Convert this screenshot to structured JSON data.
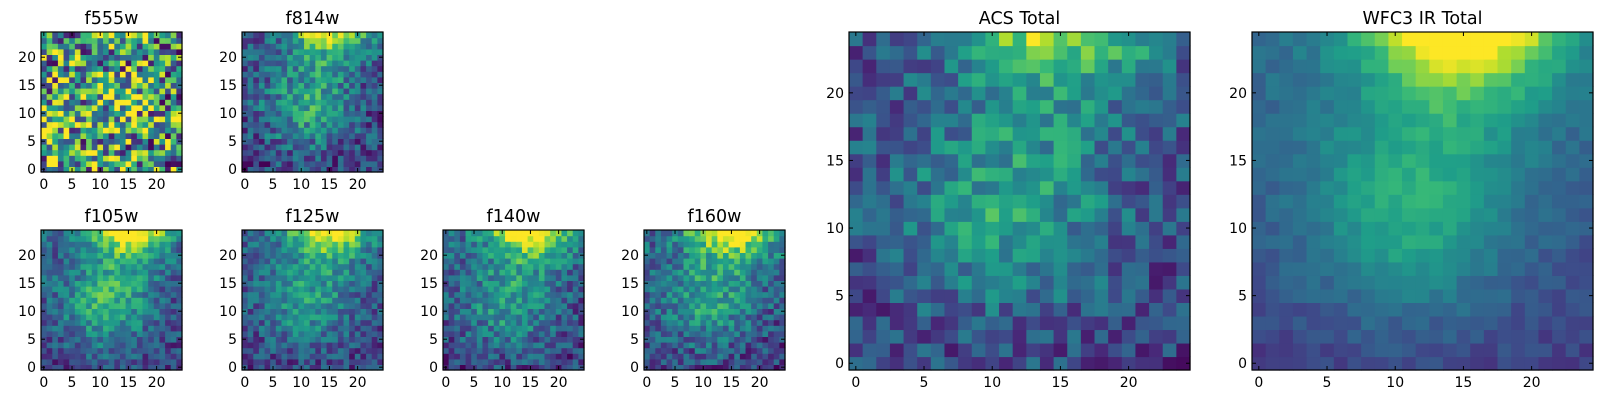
{
  "chart_data": {
    "type": "heatmap",
    "colormap": "viridis",
    "grid_size": 25,
    "xlim": [
      0,
      24
    ],
    "ylim": [
      0,
      24
    ],
    "grid": false,
    "x_ticks": [
      0,
      5,
      10,
      15,
      20
    ],
    "y_ticks": [
      0,
      5,
      10,
      15,
      20
    ],
    "panels": [
      {
        "title": "f555w",
        "noise": 0.55,
        "top": 0.05,
        "center": 0.1,
        "bottom": 0.02
      },
      {
        "title": "f814w",
        "noise": 0.22,
        "top": 0.7,
        "center": 0.35,
        "bottom": 0.2
      },
      {
        "title": "f105w",
        "noise": 0.18,
        "top": 0.85,
        "center": 0.4,
        "bottom": 0.3
      },
      {
        "title": "f125w",
        "noise": 0.18,
        "top": 0.8,
        "center": 0.3,
        "bottom": 0.3
      },
      {
        "title": "f140w",
        "noise": 0.2,
        "top": 0.85,
        "center": 0.3,
        "bottom": 0.35
      },
      {
        "title": "f160w",
        "noise": 0.2,
        "top": 0.85,
        "center": 0.3,
        "bottom": 0.4
      },
      {
        "title": "ACS Total",
        "noise": 0.18,
        "top": 0.6,
        "center": 0.35,
        "bottom": 0.2
      },
      {
        "title": "WFC3 IR Total",
        "noise": 0.06,
        "top": 0.85,
        "center": 0.35,
        "bottom": 0.45
      }
    ]
  }
}
